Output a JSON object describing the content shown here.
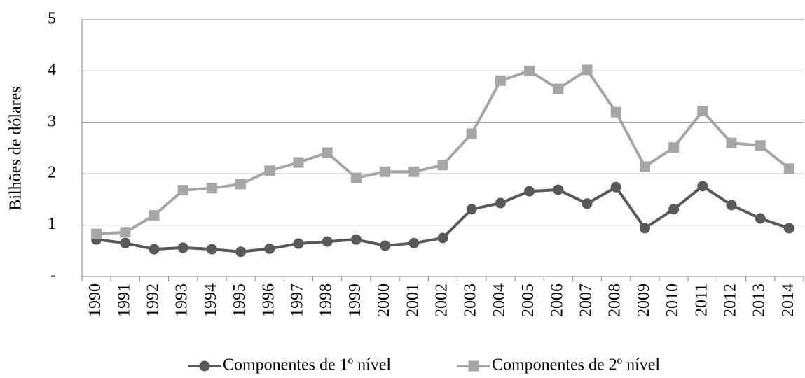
{
  "chart_data": {
    "type": "line",
    "y_label": "Bilhões de dólares",
    "categories": [
      "1990",
      "1991",
      "1992",
      "1993",
      "1994",
      "1995",
      "1996",
      "1997",
      "1998",
      "1999",
      "2000",
      "2001",
      "2002",
      "2003",
      "2004",
      "2005",
      "2006",
      "2007",
      "2008",
      "2009",
      "2010",
      "2011",
      "2012",
      "2013",
      "2014"
    ],
    "series": [
      {
        "name": "Componentes de 1º nível",
        "color": "#595959",
        "marker": "circle",
        "values": [
          0.72,
          0.65,
          0.53,
          0.56,
          0.53,
          0.48,
          0.54,
          0.64,
          0.68,
          0.72,
          0.6,
          0.65,
          0.75,
          1.31,
          1.43,
          1.66,
          1.69,
          1.42,
          1.74,
          0.94,
          1.31,
          1.76,
          1.39,
          1.13,
          0.94
        ]
      },
      {
        "name": "Componentes de 2º nível",
        "color": "#a6a6a6",
        "marker": "square",
        "values": [
          0.83,
          0.86,
          1.19,
          1.68,
          1.72,
          1.8,
          2.06,
          2.22,
          2.41,
          1.92,
          2.04,
          2.04,
          2.17,
          2.78,
          3.81,
          4.0,
          3.65,
          4.02,
          3.2,
          2.14,
          2.51,
          3.22,
          2.6,
          2.55,
          2.1
        ]
      }
    ],
    "ylim": [
      0,
      5
    ],
    "yticks": [
      {
        "value": 0,
        "label": "-"
      },
      1,
      2,
      3,
      4,
      5
    ],
    "grid": true,
    "legend": "bottom"
  }
}
